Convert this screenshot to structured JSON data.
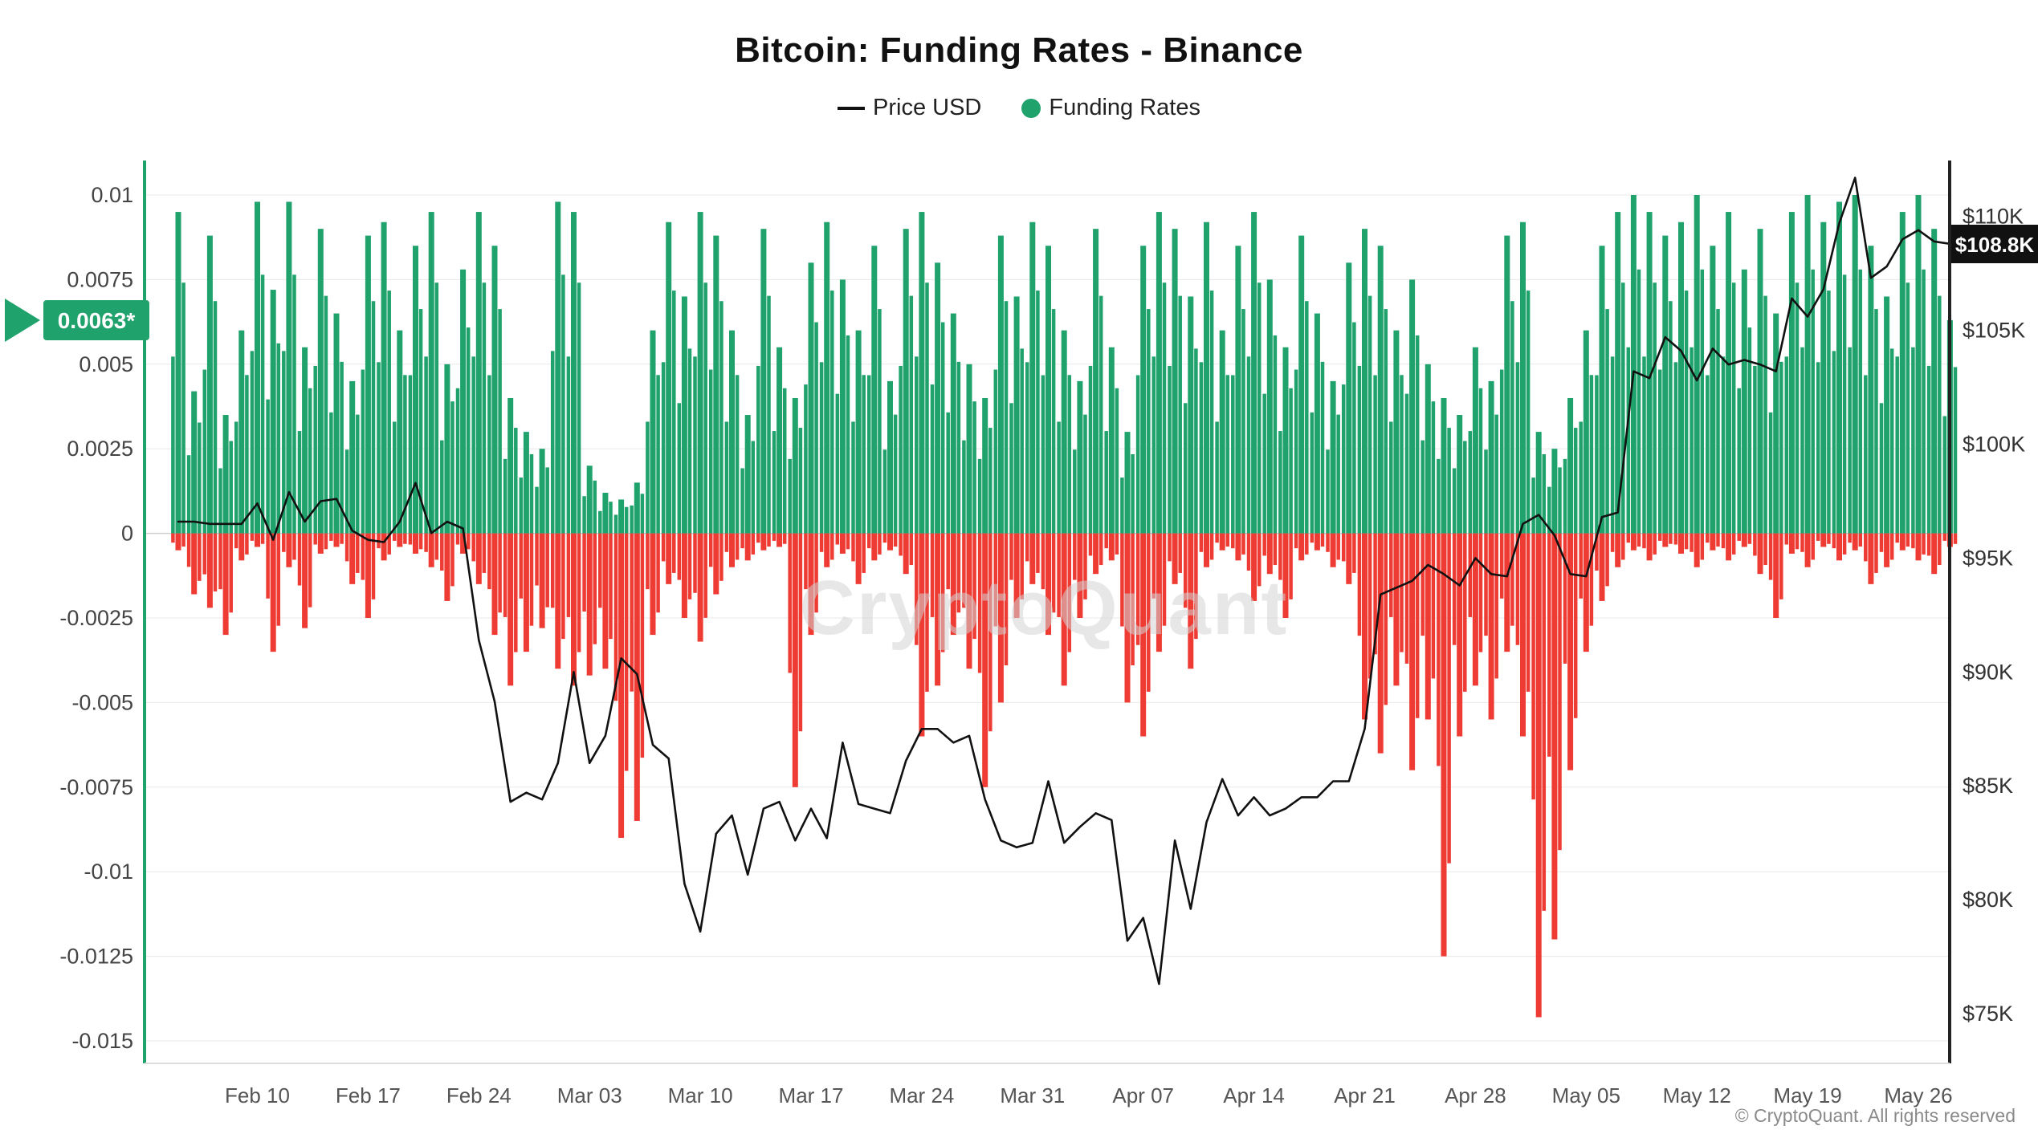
{
  "header": {
    "title": "Bitcoin: Funding Rates - Binance"
  },
  "legend": {
    "price_label": "Price USD",
    "funding_label": "Funding Rates"
  },
  "colors": {
    "green": "#1FA26C",
    "red": "#EE3B33",
    "price_line": "#111111",
    "grid": "#E8E8E8",
    "zero_line": "#CFCFCF",
    "axis_text": "#444444",
    "watermark": "#D4D4D4"
  },
  "left_marker": {
    "label": "0.0063*",
    "value": 0.0063
  },
  "price_badge": {
    "label": "$108.8K",
    "value_thousands": 108.8
  },
  "watermark": {
    "text": "CryptoQuant"
  },
  "footer": {
    "copyright": "© CryptoQuant. All rights reserved"
  },
  "chart_data": {
    "type": "bar+line",
    "title": "Bitcoin: Funding Rates - Binance",
    "x_start": "Feb 05",
    "x_end": "May 28",
    "x_frequency": "daily",
    "n_points": 113,
    "grid": "horizontal",
    "legend_position": "top-center",
    "left_axis": {
      "label": "Funding Rates",
      "ylim": [
        -0.015,
        0.01
      ],
      "ticks": [
        {
          "label": "0.01",
          "value": 0.01
        },
        {
          "label": "0.0075",
          "value": 0.0075
        },
        {
          "label": "0.005",
          "value": 0.005
        },
        {
          "label": "0.0025",
          "value": 0.0025
        },
        {
          "label": "0",
          "value": 0
        },
        {
          "label": "-0.0025",
          "value": -0.0025
        },
        {
          "label": "-0.005",
          "value": -0.005
        },
        {
          "label": "-0.0075",
          "value": -0.0075
        },
        {
          "label": "-0.01",
          "value": -0.01
        },
        {
          "label": "-0.0125",
          "value": -0.0125
        },
        {
          "label": "-0.015",
          "value": -0.015
        }
      ]
    },
    "right_axis": {
      "label": "Price USD",
      "ylim_thousands": [
        72.8,
        112.5
      ],
      "ticks": [
        {
          "label": "$110K",
          "value": 110
        },
        {
          "label": "$105K",
          "value": 105
        },
        {
          "label": "$100K",
          "value": 100
        },
        {
          "label": "$95K",
          "value": 95
        },
        {
          "label": "$90K",
          "value": 90
        },
        {
          "label": "$85K",
          "value": 85
        },
        {
          "label": "$80K",
          "value": 80
        },
        {
          "label": "$75K",
          "value": 75
        }
      ]
    },
    "x_ticks": [
      {
        "label": "Feb 10",
        "i": 5
      },
      {
        "label": "Feb 17",
        "i": 12
      },
      {
        "label": "Feb 24",
        "i": 19
      },
      {
        "label": "Mar 03",
        "i": 26
      },
      {
        "label": "Mar 10",
        "i": 33
      },
      {
        "label": "Mar 17",
        "i": 40
      },
      {
        "label": "Mar 24",
        "i": 47
      },
      {
        "label": "Mar 31",
        "i": 54
      },
      {
        "label": "Apr 07",
        "i": 61
      },
      {
        "label": "Apr 14",
        "i": 68
      },
      {
        "label": "Apr 21",
        "i": 75
      },
      {
        "label": "Apr 28",
        "i": 82
      },
      {
        "label": "May 05",
        "i": 89
      },
      {
        "label": "May 12",
        "i": 96
      },
      {
        "label": "May 19",
        "i": 103
      },
      {
        "label": "May 26",
        "i": 110
      }
    ],
    "series": [
      {
        "name": "Funding Rates (daily max, positive)",
        "axis": "left",
        "color": "#1FA26C",
        "values": [
          0.0095,
          0.0042,
          0.0088,
          0.0035,
          0.006,
          0.0098,
          0.0072,
          0.0098,
          0.0055,
          0.009,
          0.0065,
          0.0045,
          0.0088,
          0.0092,
          0.006,
          0.0085,
          0.0095,
          0.005,
          0.0078,
          0.0095,
          0.0085,
          0.004,
          0.003,
          0.0025,
          0.0098,
          0.0095,
          0.002,
          0.0012,
          0.001,
          0.0015,
          0.006,
          0.0092,
          0.007,
          0.0095,
          0.0088,
          0.006,
          0.0035,
          0.009,
          0.0055,
          0.004,
          0.008,
          0.0092,
          0.0075,
          0.006,
          0.0085,
          0.0045,
          0.009,
          0.0095,
          0.008,
          0.0065,
          0.005,
          0.004,
          0.0088,
          0.007,
          0.0092,
          0.0085,
          0.006,
          0.0045,
          0.009,
          0.0055,
          0.003,
          0.0085,
          0.0095,
          0.009,
          0.007,
          0.0092,
          0.006,
          0.0085,
          0.0095,
          0.0075,
          0.0055,
          0.0088,
          0.0065,
          0.0045,
          0.008,
          0.009,
          0.0085,
          0.006,
          0.0075,
          0.005,
          0.004,
          0.0035,
          0.0055,
          0.0045,
          0.0088,
          0.0092,
          0.003,
          0.0025,
          0.004,
          0.006,
          0.0085,
          0.0095,
          0.01,
          0.0095,
          0.0088,
          0.0092,
          0.01,
          0.0085,
          0.0095,
          0.0078,
          0.009,
          0.0065,
          0.0095,
          0.01,
          0.0092,
          0.0098,
          0.01,
          0.0085,
          0.007,
          0.0095,
          0.01,
          0.009,
          0.0063
        ]
      },
      {
        "name": "Funding Rates (daily min, negative)",
        "axis": "left",
        "color": "#EE3B33",
        "values": [
          -0.0005,
          -0.0018,
          -0.0022,
          -0.003,
          -0.0008,
          -0.0004,
          -0.0035,
          -0.001,
          -0.0028,
          -0.0006,
          -0.0004,
          -0.0015,
          -0.0025,
          -0.0008,
          -0.0004,
          -0.0006,
          -0.001,
          -0.002,
          -0.0006,
          -0.0015,
          -0.003,
          -0.0045,
          -0.0035,
          -0.0028,
          -0.004,
          -0.0045,
          -0.0042,
          -0.004,
          -0.009,
          -0.0085,
          -0.003,
          -0.0015,
          -0.0025,
          -0.0032,
          -0.0018,
          -0.001,
          -0.0008,
          -0.0005,
          -0.0004,
          -0.0075,
          -0.003,
          -0.001,
          -0.0006,
          -0.0015,
          -0.0008,
          -0.0005,
          -0.0012,
          -0.006,
          -0.0045,
          -0.003,
          -0.004,
          -0.0075,
          -0.005,
          -0.0025,
          -0.0015,
          -0.003,
          -0.0045,
          -0.0025,
          -0.0012,
          -0.0008,
          -0.005,
          -0.006,
          -0.0035,
          -0.0015,
          -0.004,
          -0.001,
          -0.0005,
          -0.0008,
          -0.002,
          -0.0012,
          -0.0025,
          -0.0008,
          -0.0005,
          -0.001,
          -0.0015,
          -0.0055,
          -0.0065,
          -0.0045,
          -0.007,
          -0.0055,
          -0.0125,
          -0.006,
          -0.0045,
          -0.0055,
          -0.0035,
          -0.006,
          -0.0143,
          -0.012,
          -0.007,
          -0.0035,
          -0.002,
          -0.001,
          -0.0005,
          -0.0008,
          -0.0004,
          -0.0006,
          -0.001,
          -0.0005,
          -0.0008,
          -0.0004,
          -0.0012,
          -0.0025,
          -0.0006,
          -0.001,
          -0.0004,
          -0.0008,
          -0.0005,
          -0.0015,
          -0.001,
          -0.0005,
          -0.0008,
          -0.0012,
          -0.0004
        ]
      },
      {
        "name": "Price USD (thousands)",
        "axis": "right",
        "color": "#111111",
        "values": [
          96.6,
          96.6,
          96.5,
          96.5,
          96.5,
          97.4,
          95.8,
          97.9,
          96.6,
          97.5,
          97.6,
          96.2,
          95.8,
          95.7,
          96.6,
          98.3,
          96.1,
          96.6,
          96.3,
          91.4,
          88.7,
          84.3,
          84.7,
          84.4,
          86.0,
          90.0,
          86.0,
          87.2,
          90.6,
          89.9,
          86.8,
          86.2,
          80.7,
          78.6,
          82.9,
          83.7,
          81.1,
          84.0,
          84.3,
          82.6,
          84.0,
          82.7,
          86.9,
          84.2,
          84.0,
          83.8,
          86.1,
          87.5,
          87.5,
          86.9,
          87.2,
          84.4,
          82.6,
          82.3,
          82.5,
          85.2,
          82.5,
          83.2,
          83.8,
          83.5,
          78.2,
          79.2,
          76.3,
          82.6,
          79.6,
          83.4,
          85.3,
          83.7,
          84.5,
          83.7,
          84.0,
          84.5,
          84.5,
          85.2,
          85.2,
          87.5,
          93.4,
          93.7,
          94.0,
          94.7,
          94.3,
          93.8,
          95.0,
          94.3,
          94.2,
          96.5,
          96.9,
          96.0,
          94.3,
          94.2,
          96.8,
          97.0,
          103.2,
          102.9,
          104.7,
          104.1,
          102.8,
          104.2,
          103.5,
          103.7,
          103.5,
          103.2,
          106.4,
          105.6,
          106.8,
          109.7,
          111.7,
          107.3,
          107.8,
          109.0,
          109.4,
          108.9,
          108.8
        ]
      }
    ],
    "annotations": {
      "last_funding_rate_label": "0.0063*",
      "last_price_label": "$108.8K"
    }
  }
}
